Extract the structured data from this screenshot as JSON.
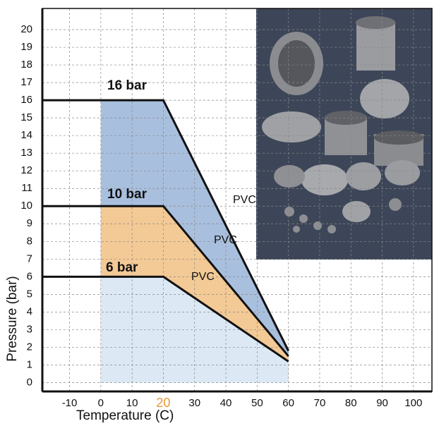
{
  "chart_data": {
    "type": "line",
    "x_label": "Temperature (C)",
    "y_label": "Pressure (bar)",
    "xlim": [
      -18.7,
      105.9
    ],
    "ylim": [
      -0.5,
      21.2
    ],
    "xticks": [
      -10,
      0,
      10,
      20,
      30,
      40,
      50,
      60,
      70,
      80,
      90,
      100
    ],
    "yticks": [
      0,
      1,
      2,
      3,
      4,
      5,
      6,
      7,
      8,
      9,
      10,
      11,
      12,
      13,
      14,
      15,
      16,
      17,
      18,
      19,
      20
    ],
    "grid": true,
    "highlight_xtick": 20,
    "highlight_color": "#e8963a",
    "x": [
      -18.7,
      0,
      20,
      60
    ],
    "series": [
      {
        "name": "16 bar",
        "color": "#a9bfde",
        "values": [
          16,
          16,
          16,
          1.8
        ]
      },
      {
        "name": "10 bar",
        "color": "#f3c995",
        "values": [
          10,
          10,
          10,
          1.5
        ]
      },
      {
        "name": "6 bar",
        "color": "#dce9f5",
        "values": [
          6,
          6,
          6,
          1.2
        ]
      }
    ],
    "annotations": [
      "PVC",
      "PVC",
      "PVC"
    ]
  }
}
